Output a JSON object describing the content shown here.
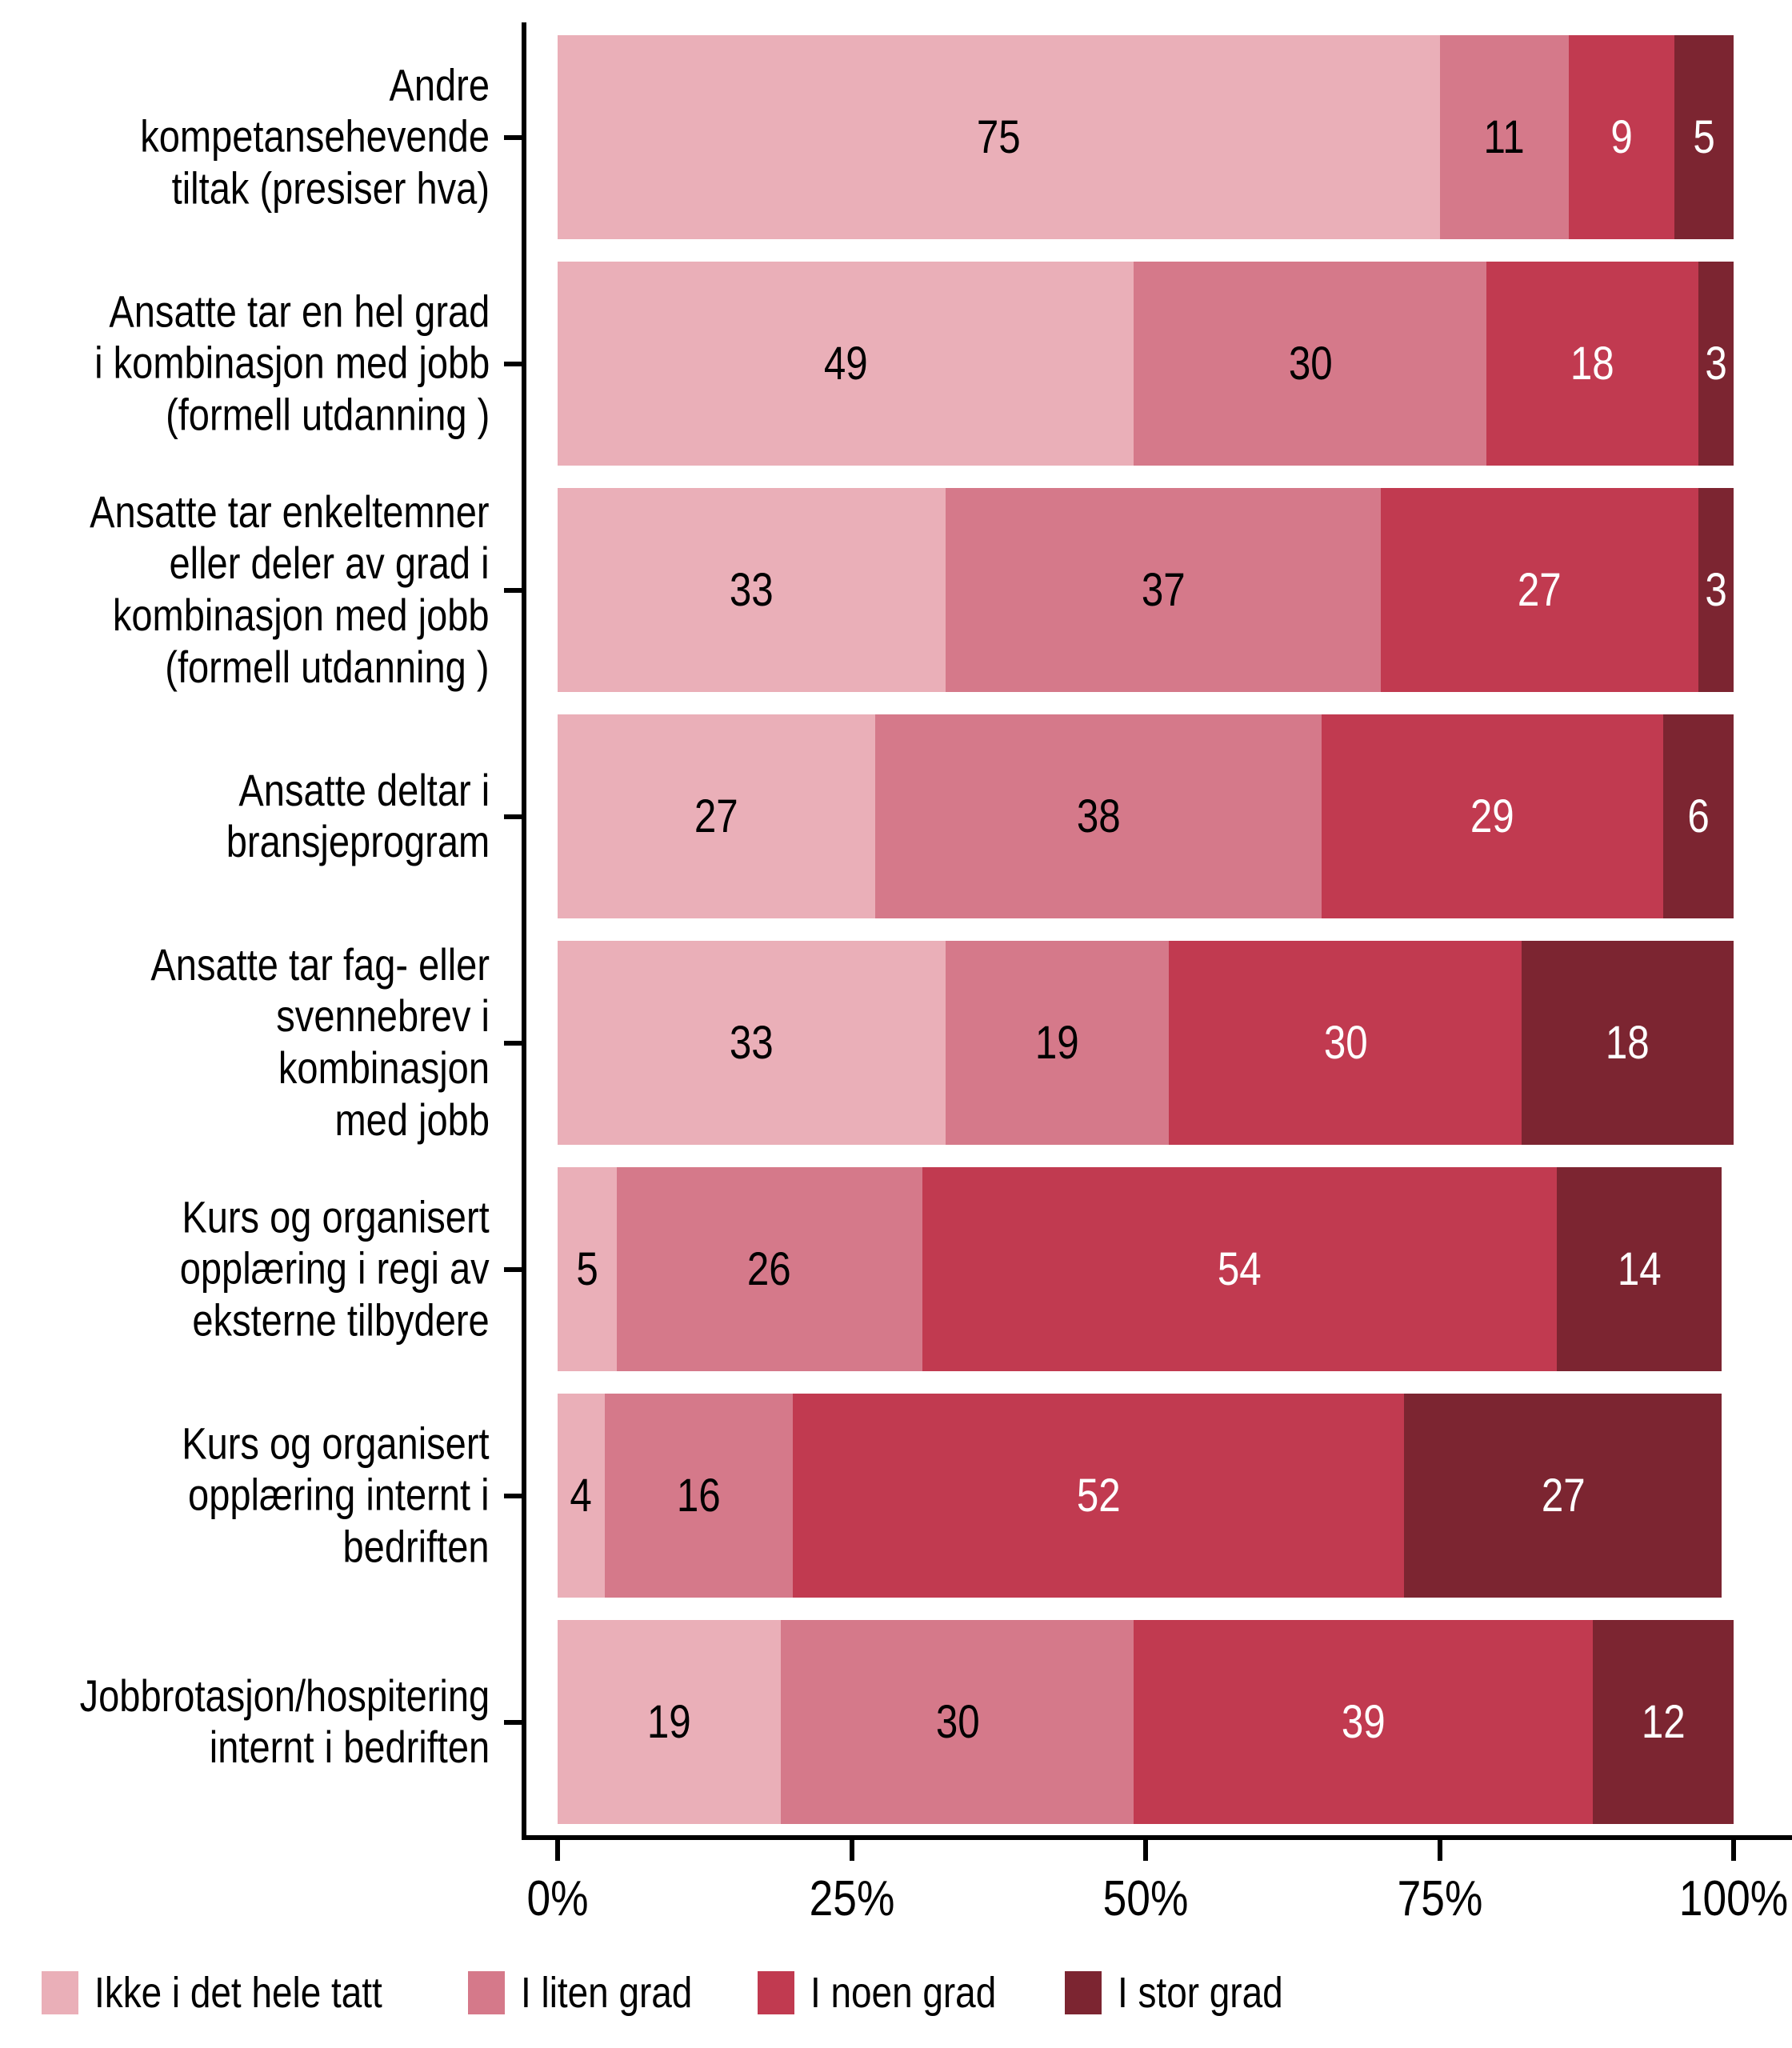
{
  "chart_data": {
    "type": "bar",
    "orientation": "horizontal",
    "stacked": true,
    "unit": "percent",
    "title": "",
    "xlabel": "",
    "ylabel": "",
    "xlim": [
      0,
      100
    ],
    "x_ticks": [
      "0%",
      "25%",
      "50%",
      "75%",
      "100%"
    ],
    "grid": false,
    "legend_position": "bottom",
    "categories": [
      "Andre kompetansehevende tiltak (presiser hva)",
      "Ansatte tar en hel grad i kombinasjon med jobb (formell utdanning )",
      "Ansatte tar enkeltemner eller deler av grad i kombinasjon med jobb (formell utdanning )",
      "Ansatte deltar i bransjeprogram",
      "Ansatte tar fag- eller svennebrev i kombinasjon med jobb",
      "Kurs og organisert opplæring i regi av eksterne tilbydere",
      "Kurs og organisert opplæring internt i bedriften",
      "Jobbrotasjon/hospitering internt i bedriften"
    ],
    "category_lines": [
      [
        "Andre kompetansehevende",
        "tiltak (presiser hva)"
      ],
      [
        "Ansatte tar en hel grad",
        "i kombinasjon med jobb",
        "(formell utdanning )"
      ],
      [
        "Ansatte tar enkeltemner",
        "eller deler av grad i",
        "kombinasjon med jobb",
        "(formell utdanning )"
      ],
      [
        "Ansatte deltar i",
        "bransjeprogram"
      ],
      [
        "Ansatte tar fag- eller",
        "svennebrev i kombinasjon",
        "med jobb"
      ],
      [
        "Kurs og organisert",
        "opplæring i regi av",
        "eksterne tilbydere"
      ],
      [
        "Kurs og organisert",
        "opplæring internt i",
        "bedriften"
      ],
      [
        "Jobbrotasjon/hospitering",
        "internt i bedriften"
      ]
    ],
    "series": [
      {
        "name": "Ikke i det hele tatt",
        "color": "#EAAFB8",
        "values": [
          75,
          49,
          33,
          27,
          33,
          5,
          4,
          19
        ]
      },
      {
        "name": "I liten grad",
        "color": "#D5798A",
        "values": [
          11,
          30,
          37,
          38,
          19,
          26,
          16,
          30
        ]
      },
      {
        "name": "I noen grad",
        "color": "#C13A50",
        "values": [
          9,
          18,
          27,
          29,
          30,
          54,
          52,
          39
        ]
      },
      {
        "name": "I stor grad",
        "color": "#7C2531",
        "values": [
          5,
          3,
          3,
          6,
          18,
          14,
          27,
          12
        ]
      }
    ],
    "colors": {
      "axis": "#000000",
      "background": "#ffffff",
      "value_text_dark": "#000000",
      "value_text_light": "#ffffff"
    }
  }
}
